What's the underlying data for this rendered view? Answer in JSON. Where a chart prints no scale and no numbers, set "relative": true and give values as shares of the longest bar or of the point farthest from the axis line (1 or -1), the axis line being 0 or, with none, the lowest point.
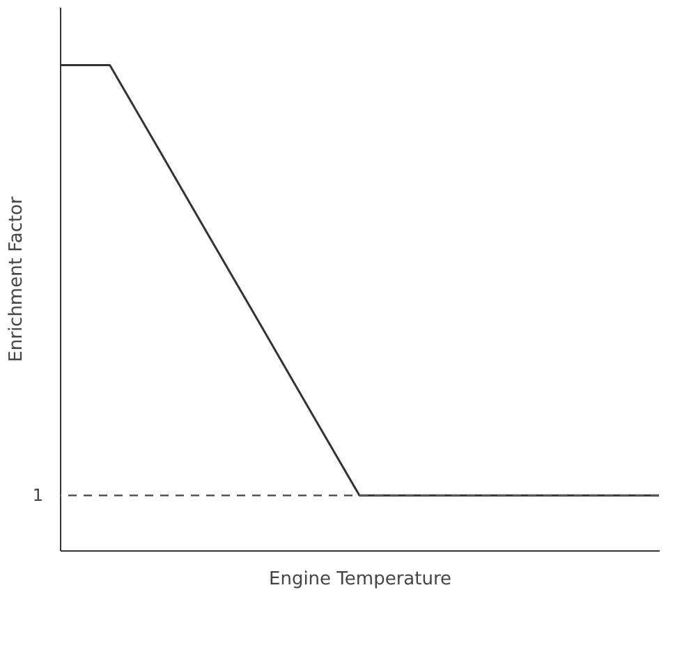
{
  "chart_data": {
    "type": "line",
    "relative": true,
    "xlabel": "Engine Temperature",
    "ylabel": "Enrichment Factor",
    "categories": [
      null,
      null,
      null,
      null,
      null,
      null,
      null,
      null,
      null,
      null,
      null,
      null,
      null
    ],
    "series": [
      {
        "color": "#333333",
        "values": [
          1,
          1,
          0.823,
          0.645,
          0.468,
          0.29,
          0.113,
          0.113,
          0.113,
          0.113,
          0.113,
          0.113,
          0.113
        ]
      }
    ],
    "ref_lines": [
      {
        "axis": "y",
        "value": 0.113,
        "line_style": "dashed",
        "color": "#555555"
      }
    ],
    "annotations": [
      "1"
    ],
    "grid": false,
    "marker": "none",
    "line_style": "solid"
  }
}
